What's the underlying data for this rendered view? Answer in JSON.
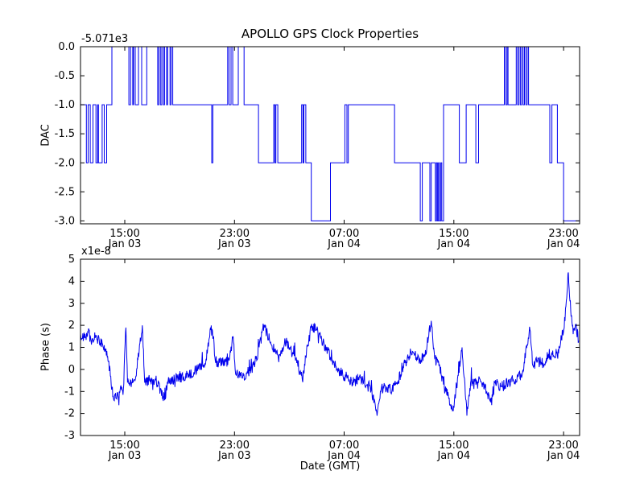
{
  "figure": {
    "title": "APOLLO GPS Clock Properties",
    "background_color": "#ffffff",
    "line_color": "#0000ee",
    "text_color": "#000000"
  },
  "chart_data": [
    {
      "id": "dac",
      "type": "step-line",
      "title": "APOLLO GPS Clock Properties",
      "ylabel": "DAC",
      "y_offset_label": "-5.071e3",
      "ylim": [
        -3.05,
        0.0
      ],
      "yticks": [
        {
          "v": 0.0,
          "label": "0.0"
        },
        {
          "v": -0.5,
          "label": "-0.5"
        },
        {
          "v": -1.0,
          "label": "-1.0"
        },
        {
          "v": -1.5,
          "label": "-1.5"
        },
        {
          "v": -2.0,
          "label": "-2.0"
        },
        {
          "v": -2.5,
          "label": "-2.5"
        },
        {
          "v": -3.0,
          "label": "-3.0"
        }
      ],
      "xlim_hours": [
        11.77,
        48.17
      ],
      "xticks": [
        {
          "hour": 15,
          "line1": "15:00",
          "line2": "Jan 03"
        },
        {
          "hour": 23,
          "line1": "23:00",
          "line2": "Jan 03"
        },
        {
          "hour": 31,
          "line1": "07:00",
          "line2": "Jan 04"
        },
        {
          "hour": 39,
          "line1": "15:00",
          "line2": "Jan 04"
        },
        {
          "hour": 47,
          "line1": "23:00",
          "line2": "Jan 04"
        }
      ],
      "steps_hours_value": [
        [
          11.77,
          -1
        ],
        [
          12.2,
          -2
        ],
        [
          12.33,
          -1
        ],
        [
          12.48,
          -2
        ],
        [
          12.68,
          -1
        ],
        [
          12.9,
          -2
        ],
        [
          13.02,
          -1
        ],
        [
          13.08,
          -2
        ],
        [
          13.35,
          -1
        ],
        [
          13.5,
          -2
        ],
        [
          13.68,
          -1
        ],
        [
          14.06,
          0
        ],
        [
          15.3,
          -1
        ],
        [
          15.42,
          0
        ],
        [
          15.58,
          -1
        ],
        [
          15.64,
          0
        ],
        [
          15.76,
          -1
        ],
        [
          16.0,
          0
        ],
        [
          16.23,
          -1
        ],
        [
          16.6,
          0
        ],
        [
          17.4,
          -1
        ],
        [
          17.48,
          0
        ],
        [
          17.6,
          -1
        ],
        [
          17.7,
          0
        ],
        [
          17.82,
          -1
        ],
        [
          17.9,
          0
        ],
        [
          18.05,
          -1
        ],
        [
          18.12,
          0
        ],
        [
          18.3,
          -1
        ],
        [
          18.38,
          0
        ],
        [
          18.5,
          -1
        ],
        [
          21.34,
          -2
        ],
        [
          21.42,
          -1
        ],
        [
          22.5,
          0
        ],
        [
          22.6,
          -1
        ],
        [
          22.75,
          0
        ],
        [
          22.87,
          -1
        ],
        [
          23.28,
          0
        ],
        [
          23.7,
          -1
        ],
        [
          24.75,
          -2
        ],
        [
          25.86,
          -1
        ],
        [
          25.95,
          -2
        ],
        [
          26.02,
          -1
        ],
        [
          26.16,
          -2
        ],
        [
          27.9,
          -1
        ],
        [
          28.0,
          -2
        ],
        [
          28.06,
          -1
        ],
        [
          28.2,
          -2
        ],
        [
          28.6,
          -3
        ],
        [
          30.0,
          -2
        ],
        [
          31.05,
          -1
        ],
        [
          31.2,
          -2
        ],
        [
          31.3,
          -1
        ],
        [
          34.67,
          -2
        ],
        [
          36.55,
          -3
        ],
        [
          36.7,
          -2
        ],
        [
          37.25,
          -3
        ],
        [
          37.35,
          -2
        ],
        [
          37.65,
          -3
        ],
        [
          37.73,
          -2
        ],
        [
          37.8,
          -3
        ],
        [
          37.88,
          -2
        ],
        [
          37.95,
          -3
        ],
        [
          38.05,
          -2
        ],
        [
          38.12,
          -3
        ],
        [
          38.25,
          -1
        ],
        [
          39.4,
          -2
        ],
        [
          39.9,
          -1
        ],
        [
          40.6,
          -2
        ],
        [
          40.8,
          -1
        ],
        [
          42.68,
          0
        ],
        [
          42.78,
          -1
        ],
        [
          42.88,
          0
        ],
        [
          42.95,
          -1
        ],
        [
          43.55,
          0
        ],
        [
          43.65,
          -1
        ],
        [
          43.75,
          0
        ],
        [
          43.85,
          -1
        ],
        [
          43.95,
          0
        ],
        [
          44.05,
          -1
        ],
        [
          44.15,
          0
        ],
        [
          44.25,
          -1
        ],
        [
          44.35,
          0
        ],
        [
          44.45,
          -1
        ],
        [
          46.0,
          -2
        ],
        [
          46.15,
          -1
        ],
        [
          46.55,
          -2
        ],
        [
          47.0,
          -3
        ],
        [
          48.17,
          -3
        ]
      ]
    },
    {
      "id": "phase",
      "type": "line",
      "ylabel": "Phase (s)",
      "xlabel": "Date (GMT)",
      "y_offset_label": "x1e-8",
      "ylim": [
        -3,
        5
      ],
      "yticks": [
        {
          "v": 5,
          "label": "5"
        },
        {
          "v": 4,
          "label": "4"
        },
        {
          "v": 3,
          "label": "3"
        },
        {
          "v": 2,
          "label": "2"
        },
        {
          "v": 1,
          "label": "1"
        },
        {
          "v": 0,
          "label": "0"
        },
        {
          "v": -1,
          "label": "-1"
        },
        {
          "v": -2,
          "label": "-2"
        },
        {
          "v": -3,
          "label": "-3"
        }
      ],
      "xlim_hours": [
        11.77,
        48.17
      ],
      "xticks": [
        {
          "hour": 15,
          "line1": "15:00",
          "line2": "Jan 03"
        },
        {
          "hour": 23,
          "line1": "23:00",
          "line2": "Jan 03"
        },
        {
          "hour": 31,
          "line1": "07:00",
          "line2": "Jan 04"
        },
        {
          "hour": 39,
          "line1": "15:00",
          "line2": "Jan 04"
        },
        {
          "hour": 47,
          "line1": "23:00",
          "line2": "Jan 04"
        }
      ],
      "noise_amplitude": 0.25,
      "anchors_hours_value": [
        [
          11.77,
          1.6
        ],
        [
          12.0,
          1.4
        ],
        [
          12.3,
          1.7
        ],
        [
          12.6,
          1.3
        ],
        [
          12.9,
          1.5
        ],
        [
          13.2,
          1.2
        ],
        [
          13.5,
          1.1
        ],
        [
          13.75,
          0.6
        ],
        [
          13.95,
          -0.3
        ],
        [
          14.15,
          -1.2
        ],
        [
          14.35,
          -1.3
        ],
        [
          14.6,
          -1.0
        ],
        [
          14.9,
          -0.9
        ],
        [
          15.08,
          1.9
        ],
        [
          15.2,
          -0.6
        ],
        [
          15.5,
          -0.6
        ],
        [
          15.75,
          -0.5
        ],
        [
          16.28,
          2.0
        ],
        [
          16.45,
          -0.6
        ],
        [
          16.8,
          -0.5
        ],
        [
          17.1,
          -0.5
        ],
        [
          17.5,
          -0.6
        ],
        [
          17.9,
          -1.4
        ],
        [
          18.1,
          -0.6
        ],
        [
          18.5,
          -0.45
        ],
        [
          18.9,
          -0.4
        ],
        [
          19.3,
          -0.35
        ],
        [
          19.7,
          -0.25
        ],
        [
          20.1,
          -0.1
        ],
        [
          20.5,
          0.15
        ],
        [
          20.9,
          0.3
        ],
        [
          21.25,
          1.9
        ],
        [
          21.45,
          1.5
        ],
        [
          21.6,
          0.4
        ],
        [
          21.9,
          0.3
        ],
        [
          22.3,
          0.35
        ],
        [
          22.6,
          0.4
        ],
        [
          22.9,
          1.5
        ],
        [
          23.05,
          0.0
        ],
        [
          23.3,
          -0.3
        ],
        [
          23.6,
          -0.35
        ],
        [
          23.9,
          -0.2
        ],
        [
          24.2,
          0.0
        ],
        [
          24.5,
          0.3
        ],
        [
          24.8,
          1.0
        ],
        [
          25.15,
          2.0
        ],
        [
          25.4,
          1.6
        ],
        [
          25.7,
          1.1
        ],
        [
          25.95,
          0.8
        ],
        [
          26.2,
          0.5
        ],
        [
          26.5,
          1.0
        ],
        [
          26.7,
          1.3
        ],
        [
          26.95,
          1.0
        ],
        [
          27.3,
          0.7
        ],
        [
          27.6,
          0.3
        ],
        [
          27.95,
          -0.5
        ],
        [
          28.2,
          0.6
        ],
        [
          28.6,
          1.9
        ],
        [
          29.0,
          1.8
        ],
        [
          29.3,
          1.4
        ],
        [
          29.7,
          0.9
        ],
        [
          30.1,
          0.5
        ],
        [
          30.5,
          0.0
        ],
        [
          30.9,
          -0.25
        ],
        [
          31.3,
          -0.4
        ],
        [
          31.7,
          -0.6
        ],
        [
          32.1,
          -0.35
        ],
        [
          32.5,
          -0.7
        ],
        [
          32.9,
          -0.8
        ],
        [
          33.4,
          -2.1
        ],
        [
          33.7,
          -0.9
        ],
        [
          34.1,
          -0.8
        ],
        [
          34.5,
          -0.9
        ],
        [
          34.9,
          -0.55
        ],
        [
          35.3,
          0.1
        ],
        [
          35.7,
          0.55
        ],
        [
          36.1,
          0.7
        ],
        [
          36.5,
          0.45
        ],
        [
          36.9,
          0.6
        ],
        [
          37.35,
          2.2
        ],
        [
          37.6,
          0.5
        ],
        [
          37.95,
          0.2
        ],
        [
          38.3,
          -0.8
        ],
        [
          38.6,
          -1.2
        ],
        [
          38.95,
          -1.9
        ],
        [
          39.2,
          -0.8
        ],
        [
          39.6,
          1.0
        ],
        [
          39.95,
          -2.1
        ],
        [
          40.25,
          -0.5
        ],
        [
          40.7,
          -0.55
        ],
        [
          41.1,
          -0.6
        ],
        [
          41.7,
          -1.5
        ],
        [
          42.0,
          -0.6
        ],
        [
          42.5,
          -0.8
        ],
        [
          43.0,
          -0.55
        ],
        [
          43.5,
          -0.45
        ],
        [
          44.0,
          -0.15
        ],
        [
          44.55,
          1.8
        ],
        [
          44.75,
          0.2
        ],
        [
          45.1,
          0.35
        ],
        [
          45.5,
          0.3
        ],
        [
          45.9,
          0.7
        ],
        [
          46.3,
          0.6
        ],
        [
          46.7,
          1.0
        ],
        [
          47.05,
          1.9
        ],
        [
          47.35,
          4.4
        ],
        [
          47.55,
          2.4
        ],
        [
          47.7,
          1.6
        ],
        [
          47.9,
          2.0
        ],
        [
          48.1,
          1.3
        ]
      ]
    }
  ]
}
